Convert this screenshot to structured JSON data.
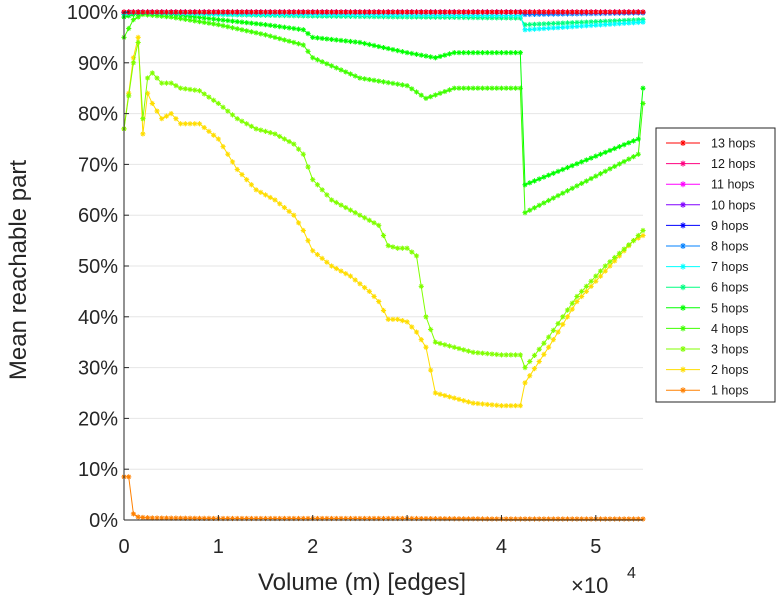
{
  "chart_data": {
    "type": "line",
    "xlabel": "Volume (m) [edges]",
    "ylabel": "Mean reachable part",
    "x_multiplier_label": "×10",
    "x_multiplier_exponent": "4",
    "xlim": [
      0,
      55000
    ],
    "ylim": [
      0,
      100
    ],
    "xticks": [
      0,
      10000,
      20000,
      30000,
      40000,
      50000
    ],
    "xtick_labels": [
      "0",
      "1",
      "2",
      "3",
      "4",
      "5"
    ],
    "yticks": [
      0,
      10,
      20,
      30,
      40,
      50,
      60,
      70,
      80,
      90,
      100
    ],
    "ytick_labels": [
      "0%",
      "10%",
      "20%",
      "30%",
      "40%",
      "50%",
      "60%",
      "70%",
      "80%",
      "90%",
      "100%"
    ],
    "grid": "horizontal",
    "legend_position": "right",
    "series": [
      {
        "name": "13 hops",
        "color": "#ff0000",
        "x": [
          0,
          1000,
          2000,
          55000
        ],
        "y": [
          100,
          100,
          100,
          100
        ]
      },
      {
        "name": "12 hops",
        "color": "#ff0080",
        "x": [
          0,
          1000,
          2000,
          55000
        ],
        "y": [
          100,
          100,
          100,
          100
        ]
      },
      {
        "name": "11 hops",
        "color": "#ff00ff",
        "x": [
          0,
          1000,
          2000,
          55000
        ],
        "y": [
          100,
          100,
          100,
          100
        ]
      },
      {
        "name": "10 hops",
        "color": "#8000ff",
        "x": [
          0,
          1000,
          2000,
          55000
        ],
        "y": [
          100,
          100,
          100,
          100
        ]
      },
      {
        "name": "9 hops",
        "color": "#0000ff",
        "x": [
          0,
          1000,
          2000,
          55000
        ],
        "y": [
          100,
          100,
          100,
          100
        ]
      },
      {
        "name": "8 hops",
        "color": "#0080ff",
        "x": [
          0,
          1000,
          2000,
          42000,
          42500,
          55000
        ],
        "y": [
          99.9,
          100,
          100,
          100,
          99.5,
          99.8
        ]
      },
      {
        "name": "7 hops",
        "color": "#00ffff",
        "x": [
          0,
          1000,
          2000,
          10000,
          42000,
          42500,
          55000
        ],
        "y": [
          99.8,
          99.9,
          100,
          99.6,
          99.3,
          96.5,
          98
        ]
      },
      {
        "name": "6 hops",
        "color": "#00ff80",
        "x": [
          0,
          1000,
          2000,
          10000,
          20000,
          42000,
          42500,
          55000
        ],
        "y": [
          99.5,
          99.8,
          99.9,
          99.5,
          99.2,
          98.8,
          97.5,
          98.5
        ]
      },
      {
        "name": "5 hops",
        "color": "#00ff00",
        "x": [
          0,
          1000,
          2000,
          5000,
          10000,
          15000,
          19000,
          20000,
          25000,
          30000,
          33000,
          35000,
          42000,
          42500,
          54500,
          55000
        ],
        "y": [
          99,
          99.5,
          99.8,
          99.6,
          98.5,
          97.5,
          96.5,
          95,
          94,
          92,
          91,
          92,
          92,
          66,
          75,
          85
        ]
      },
      {
        "name": "4 hops",
        "color": "#40ff00",
        "x": [
          0,
          1000,
          2000,
          5000,
          10000,
          15000,
          19000,
          20000,
          25000,
          30000,
          32000,
          35000,
          42000,
          42500,
          54500,
          55000
        ],
        "y": [
          95,
          98.5,
          99.5,
          99,
          97.5,
          95.5,
          93.5,
          91,
          87,
          85.5,
          83,
          85,
          85,
          60.5,
          72,
          82
        ]
      },
      {
        "name": "3 hops",
        "color": "#80ff00",
        "x": [
          0,
          1000,
          1500,
          2000,
          2500,
          3000,
          4000,
          5000,
          6000,
          8000,
          10000,
          12000,
          14000,
          16000,
          18000,
          19000,
          20000,
          22000,
          24000,
          26000,
          27000,
          28000,
          29000,
          30000,
          31000,
          32000,
          33000,
          35000,
          37000,
          40000,
          42000,
          42500,
          45000,
          48000,
          51000,
          54000,
          55000
        ],
        "y": [
          77,
          90,
          94,
          79,
          87,
          88,
          86,
          86,
          85,
          84.5,
          82,
          79,
          77,
          76,
          74,
          72,
          67,
          63,
          61,
          59,
          58,
          54,
          53.5,
          53.5,
          52,
          40,
          35,
          34,
          33,
          32.5,
          32.5,
          30,
          36,
          44,
          50,
          55,
          57
        ]
      },
      {
        "name": "2 hops",
        "color": "#ffdd00",
        "x": [
          0,
          1000,
          1500,
          2000,
          2500,
          3000,
          4000,
          5000,
          6000,
          8000,
          10000,
          12000,
          14000,
          16000,
          18000,
          19000,
          20000,
          22000,
          24000,
          26000,
          27000,
          28000,
          29000,
          30000,
          31000,
          32000,
          33000,
          35000,
          37000,
          40000,
          42000,
          42500,
          45000,
          48000,
          51000,
          54000,
          55000
        ],
        "y": [
          77,
          91,
          95,
          76,
          84,
          82,
          79,
          80,
          78,
          78,
          75,
          69,
          65,
          63,
          60,
          57,
          53,
          50,
          48,
          45,
          43,
          39.5,
          39.5,
          39,
          37,
          34,
          25,
          24,
          23,
          22.5,
          22.5,
          27,
          34,
          43,
          49,
          55,
          56
        ]
      },
      {
        "name": "1 hops",
        "color": "#ff8000",
        "x": [
          0,
          500,
          1000,
          1500,
          2000,
          3000,
          10000,
          20000,
          30000,
          40000,
          50000,
          55000
        ],
        "y": [
          8.5,
          8.5,
          1.2,
          0.6,
          0.5,
          0.4,
          0.3,
          0.3,
          0.3,
          0.2,
          0.2,
          0.2
        ]
      }
    ]
  }
}
